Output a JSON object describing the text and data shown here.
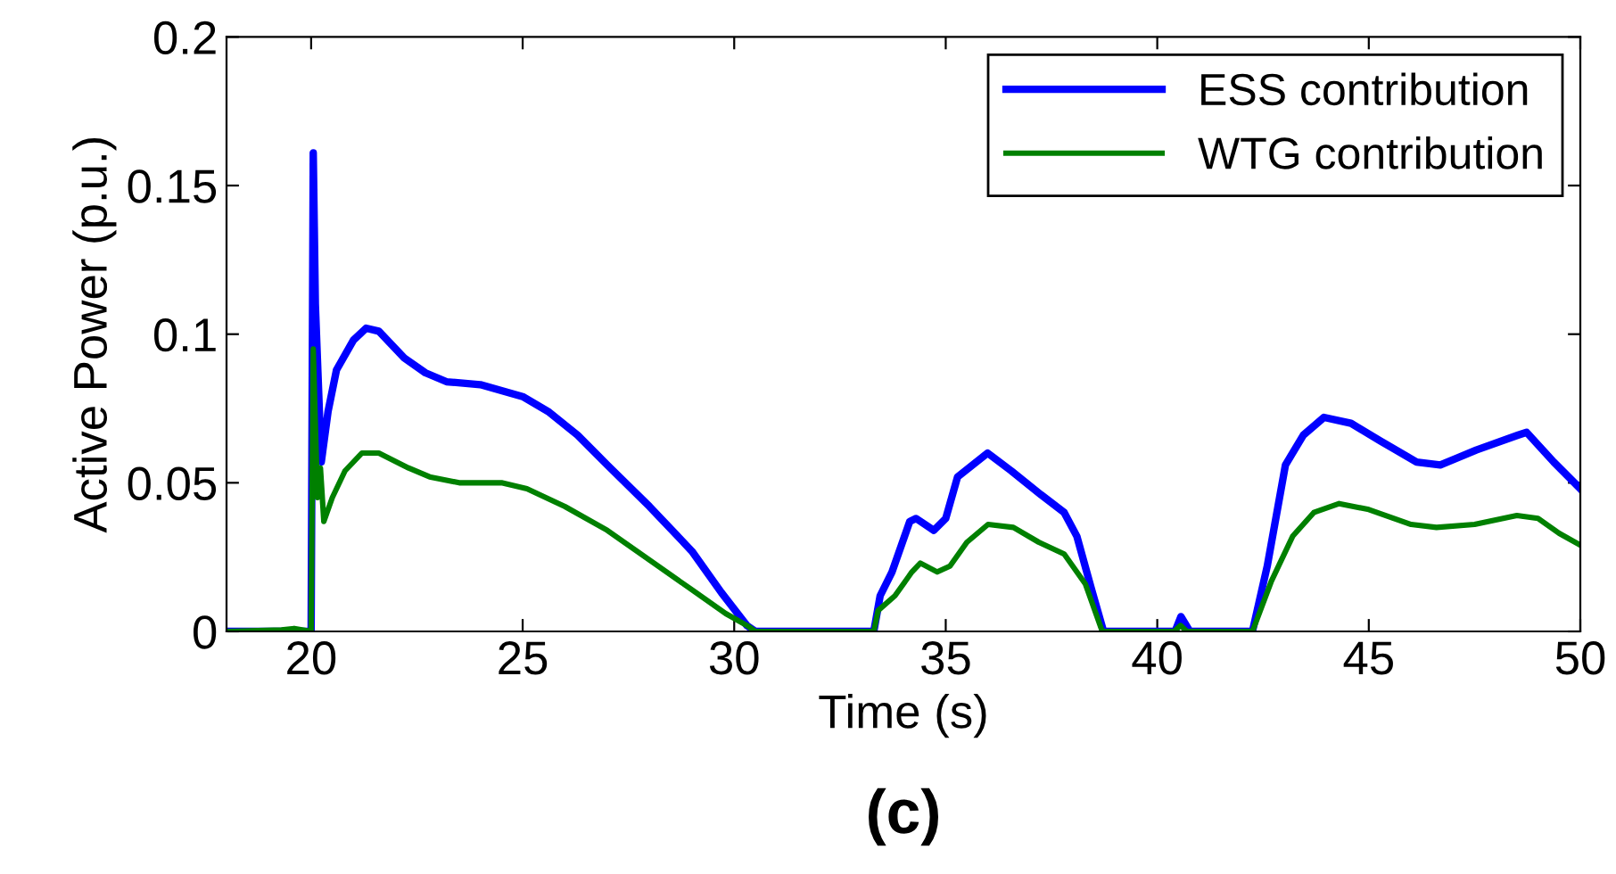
{
  "chart_data": {
    "type": "line",
    "xlabel": "Time (s)",
    "ylabel": "Active Power (p.u.)",
    "annotations": [
      "(c)"
    ],
    "xlim": [
      18,
      50
    ],
    "xticks": [
      20,
      25,
      30,
      35,
      40,
      45,
      50
    ],
    "ylim": [
      0,
      0.2
    ],
    "yticks": [
      0,
      0.05,
      0.1,
      0.15,
      0.2
    ],
    "grid": false,
    "legend": "top right",
    "series": [
      {
        "name": "ESS contribution",
        "color": "#0000ff",
        "x": [
          18,
          19.5,
          20.0,
          20.05,
          20.1,
          20.24,
          20.4,
          20.6,
          21.0,
          21.3,
          21.6,
          22.2,
          22.7,
          23.2,
          24.0,
          25.0,
          25.6,
          26.3,
          27.0,
          28.0,
          29.0,
          29.7,
          30.3,
          30.5,
          33.3,
          33.45,
          33.73,
          34.15,
          34.3,
          34.72,
          35.0,
          35.28,
          35.99,
          36.55,
          37.25,
          37.8,
          38.1,
          38.45,
          38.73,
          40.42,
          40.56,
          40.77,
          42.25,
          42.6,
          43.03,
          43.45,
          43.94,
          44.58,
          45.28,
          46.13,
          46.69,
          47.54,
          48.52,
          48.73,
          49.37,
          50.0
        ],
        "values": [
          0,
          0,
          0,
          0.161,
          0.11,
          0.057,
          0.074,
          0.088,
          0.098,
          0.102,
          0.101,
          0.092,
          0.087,
          0.084,
          0.083,
          0.079,
          0.074,
          0.066,
          0.056,
          0.042,
          0.027,
          0.013,
          0.002,
          0,
          0,
          0.012,
          0.02,
          0.037,
          0.038,
          0.034,
          0.038,
          0.052,
          0.06,
          0.054,
          0.046,
          0.04,
          0.032,
          0.014,
          0,
          0,
          0.005,
          0,
          0,
          0.022,
          0.056,
          0.066,
          0.072,
          0.07,
          0.064,
          0.057,
          0.056,
          0.061,
          0.066,
          0.067,
          0.057,
          0.048
        ]
      },
      {
        "name": "WTG contribution",
        "color": "#008000",
        "x": [
          18,
          19.3,
          19.6,
          20.0,
          20.05,
          20.15,
          20.22,
          20.3,
          20.5,
          20.8,
          21.2,
          21.6,
          22.3,
          22.8,
          23.5,
          24.5,
          25.1,
          26.0,
          27.0,
          28.0,
          29.0,
          29.8,
          30.3,
          30.5,
          33.3,
          33.4,
          33.8,
          34.2,
          34.4,
          34.8,
          35.1,
          35.5,
          36.0,
          36.6,
          37.2,
          37.8,
          38.3,
          38.7,
          40.4,
          40.55,
          40.7,
          42.25,
          42.7,
          43.2,
          43.7,
          44.3,
          45.0,
          46.0,
          46.6,
          47.5,
          48.5,
          49.0,
          49.5,
          50.0
        ],
        "values": [
          0,
          0.0005,
          0.001,
          0,
          0.095,
          0.045,
          0.055,
          0.037,
          0.045,
          0.054,
          0.06,
          0.06,
          0.055,
          0.052,
          0.05,
          0.05,
          0.048,
          0.042,
          0.034,
          0.024,
          0.014,
          0.006,
          0.002,
          0,
          0,
          0.007,
          0.012,
          0.02,
          0.023,
          0.02,
          0.022,
          0.03,
          0.036,
          0.035,
          0.03,
          0.026,
          0.016,
          0,
          0,
          0.002,
          0,
          0,
          0.017,
          0.032,
          0.04,
          0.043,
          0.041,
          0.036,
          0.035,
          0.036,
          0.039,
          0.038,
          0.033,
          0.029
        ]
      }
    ]
  }
}
